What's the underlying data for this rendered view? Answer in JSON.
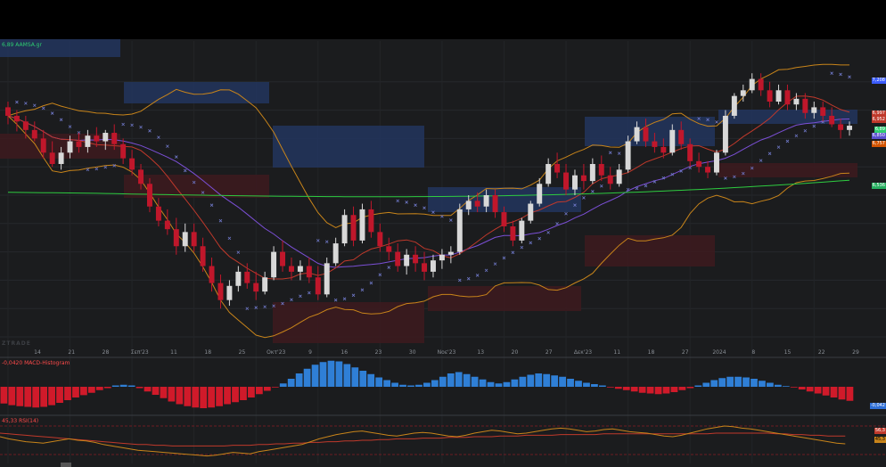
{
  "window": {
    "top_bar_color": "#000000"
  },
  "legends": {
    "price": "6,89 AAMSA.gr",
    "macd": "-0,0420 MACD-Histogram",
    "rsi": "45,33 RSI(14)",
    "watermark": "ZTRADE"
  },
  "price_tags": [
    {
      "text": "7,208",
      "color": "#3b5cff"
    },
    {
      "text": "6,997",
      "color": "#c0392b"
    },
    {
      "text": "6,952",
      "color": "#c0392b"
    },
    {
      "text": "6,89",
      "color": "#2ecc71"
    },
    {
      "text": "6,850",
      "color": "#5a4fcf"
    },
    {
      "text": "6,757",
      "color": "#d35400"
    },
    {
      "text": "6,536",
      "color": "#27ae60"
    }
  ],
  "macd_tag": "-0,042",
  "rsi_tags": [
    "56,3",
    "45,3"
  ],
  "x_axis_labels": [
    "14",
    "21",
    "28",
    "Σεπ'23",
    "11",
    "18",
    "25",
    "Οκτ'23",
    "9",
    "16",
    "23",
    "30",
    "Νοε'23",
    "13",
    "20",
    "27",
    "Δεκ'23",
    "11",
    "18",
    "27",
    "2024",
    "8",
    "15",
    "22",
    "29"
  ],
  "colors": {
    "background": "#1b1c1e",
    "up_candle": "#d8d8d8",
    "down_candle": "#c0172b",
    "sma_green": "#2ecc40",
    "ma_purple": "#7b4fd6",
    "ma_red": "#c0392b",
    "bollinger": "#c8841a",
    "parabolic_sar": "#6f78c8",
    "macd_pos": "#2f7fd6",
    "macd_neg": "#d01a2a",
    "rsi_line": "#c8841a",
    "rsi_signal": "#c0392b"
  },
  "chart_data": [
    {
      "type": "candlestick",
      "title": "",
      "symbol_label": "AAMSA.gr",
      "last": 6.89,
      "ylim": [
        5.35,
        7.45
      ],
      "ohlc": [
        [
          7.02,
          7.06,
          6.9,
          6.96
        ],
        [
          6.96,
          7.0,
          6.85,
          6.92
        ],
        [
          6.92,
          6.96,
          6.8,
          6.86
        ],
        [
          6.86,
          6.92,
          6.78,
          6.8
        ],
        [
          6.8,
          6.86,
          6.66,
          6.7
        ],
        [
          6.7,
          6.78,
          6.6,
          6.62
        ],
        [
          6.62,
          6.74,
          6.58,
          6.7
        ],
        [
          6.7,
          6.82,
          6.66,
          6.78
        ],
        [
          6.78,
          6.84,
          6.7,
          6.74
        ],
        [
          6.74,
          6.86,
          6.7,
          6.82
        ],
        [
          6.82,
          6.88,
          6.74,
          6.78
        ],
        [
          6.78,
          6.86,
          6.72,
          6.84
        ],
        [
          6.84,
          6.9,
          6.72,
          6.76
        ],
        [
          6.76,
          6.8,
          6.62,
          6.66
        ],
        [
          6.66,
          6.72,
          6.54,
          6.58
        ],
        [
          6.58,
          6.62,
          6.44,
          6.48
        ],
        [
          6.48,
          6.52,
          6.28,
          6.32
        ],
        [
          6.32,
          6.38,
          6.18,
          6.22
        ],
        [
          6.22,
          6.3,
          6.12,
          6.16
        ],
        [
          6.16,
          6.24,
          5.98,
          6.04
        ],
        [
          6.04,
          6.2,
          6.0,
          6.14
        ],
        [
          6.14,
          6.2,
          6.0,
          6.04
        ],
        [
          6.04,
          6.1,
          5.86,
          5.9
        ],
        [
          5.9,
          5.96,
          5.72,
          5.78
        ],
        [
          5.78,
          5.84,
          5.6,
          5.66
        ],
        [
          5.66,
          5.8,
          5.62,
          5.76
        ],
        [
          5.76,
          5.9,
          5.72,
          5.86
        ],
        [
          5.86,
          5.92,
          5.74,
          5.78
        ],
        [
          5.78,
          5.86,
          5.66,
          5.72
        ],
        [
          5.72,
          5.86,
          5.7,
          5.82
        ],
        [
          5.82,
          6.04,
          5.8,
          6.0
        ],
        [
          6.0,
          6.08,
          5.86,
          5.9
        ],
        [
          5.9,
          5.96,
          5.8,
          5.86
        ],
        [
          5.86,
          5.94,
          5.8,
          5.9
        ],
        [
          5.9,
          5.96,
          5.78,
          5.82
        ],
        [
          5.82,
          5.9,
          5.66,
          5.7
        ],
        [
          5.7,
          5.96,
          5.68,
          5.92
        ],
        [
          5.92,
          6.1,
          5.9,
          6.06
        ],
        [
          6.06,
          6.3,
          6.04,
          6.26
        ],
        [
          6.26,
          6.32,
          6.04,
          6.08
        ],
        [
          6.08,
          6.34,
          6.06,
          6.3
        ],
        [
          6.3,
          6.36,
          6.1,
          6.14
        ],
        [
          6.14,
          6.2,
          6.0,
          6.04
        ],
        [
          6.04,
          6.1,
          5.94,
          6.0
        ],
        [
          6.0,
          6.06,
          5.86,
          5.9
        ],
        [
          5.9,
          6.02,
          5.84,
          5.98
        ],
        [
          5.98,
          6.04,
          5.86,
          5.92
        ],
        [
          5.92,
          6.0,
          5.8,
          5.86
        ],
        [
          5.86,
          5.98,
          5.82,
          5.94
        ],
        [
          5.94,
          6.02,
          5.88,
          5.98
        ],
        [
          5.98,
          6.04,
          5.92,
          6.0
        ],
        [
          6.0,
          6.34,
          5.98,
          6.3
        ],
        [
          6.3,
          6.4,
          6.26,
          6.36
        ],
        [
          6.36,
          6.42,
          6.28,
          6.32
        ],
        [
          6.32,
          6.44,
          6.28,
          6.4
        ],
        [
          6.4,
          6.44,
          6.24,
          6.28
        ],
        [
          6.28,
          6.32,
          6.14,
          6.18
        ],
        [
          6.18,
          6.22,
          6.04,
          6.08
        ],
        [
          6.08,
          6.24,
          6.06,
          6.22
        ],
        [
          6.22,
          6.36,
          6.2,
          6.34
        ],
        [
          6.34,
          6.52,
          6.32,
          6.48
        ],
        [
          6.48,
          6.66,
          6.46,
          6.62
        ],
        [
          6.62,
          6.7,
          6.52,
          6.56
        ],
        [
          6.56,
          6.62,
          6.4,
          6.44
        ],
        [
          6.44,
          6.58,
          6.4,
          6.54
        ],
        [
          6.54,
          6.62,
          6.44,
          6.5
        ],
        [
          6.5,
          6.66,
          6.48,
          6.62
        ],
        [
          6.62,
          6.68,
          6.5,
          6.54
        ],
        [
          6.54,
          6.6,
          6.44,
          6.48
        ],
        [
          6.48,
          6.62,
          6.46,
          6.58
        ],
        [
          6.58,
          6.82,
          6.56,
          6.78
        ],
        [
          6.78,
          6.92,
          6.76,
          6.88
        ],
        [
          6.88,
          6.94,
          6.74,
          6.78
        ],
        [
          6.78,
          6.84,
          6.7,
          6.74
        ],
        [
          6.74,
          6.8,
          6.66,
          6.7
        ],
        [
          6.7,
          6.9,
          6.68,
          6.86
        ],
        [
          6.86,
          6.92,
          6.72,
          6.76
        ],
        [
          6.76,
          6.8,
          6.6,
          6.64
        ],
        [
          6.64,
          6.7,
          6.56,
          6.6
        ],
        [
          6.6,
          6.64,
          6.52,
          6.56
        ],
        [
          6.56,
          6.72,
          6.54,
          6.7
        ],
        [
          6.7,
          7.0,
          6.68,
          6.96
        ],
        [
          6.96,
          7.12,
          6.94,
          7.1
        ],
        [
          7.1,
          7.18,
          7.06,
          7.14
        ],
        [
          7.14,
          7.26,
          7.12,
          7.22
        ],
        [
          7.22,
          7.26,
          7.1,
          7.14
        ],
        [
          7.14,
          7.2,
          7.02,
          7.06
        ],
        [
          7.06,
          7.18,
          7.04,
          7.14
        ],
        [
          7.14,
          7.18,
          7.0,
          7.04
        ],
        [
          7.04,
          7.12,
          7.0,
          7.08
        ],
        [
          7.08,
          7.12,
          6.94,
          6.98
        ],
        [
          6.98,
          7.06,
          6.94,
          7.02
        ],
        [
          7.02,
          7.06,
          6.92,
          6.96
        ],
        [
          6.96,
          7.02,
          6.88,
          6.9
        ],
        [
          6.9,
          6.94,
          6.8,
          6.86
        ],
        [
          6.86,
          6.92,
          6.82,
          6.89
        ]
      ],
      "indicators": [
        "SMA(200)",
        "MA",
        "Bollinger Bands",
        "Parabolic SAR"
      ]
    },
    {
      "type": "bar",
      "title": "MACD-Histogram",
      "last": -0.042,
      "values": [
        -0.05,
        -0.055,
        -0.058,
        -0.06,
        -0.062,
        -0.06,
        -0.055,
        -0.048,
        -0.04,
        -0.032,
        -0.025,
        -0.018,
        -0.01,
        -0.004,
        0.004,
        0.006,
        0.004,
        -0.004,
        -0.014,
        -0.024,
        -0.034,
        -0.044,
        -0.052,
        -0.058,
        -0.062,
        -0.064,
        -0.062,
        -0.058,
        -0.052,
        -0.046,
        -0.04,
        -0.032,
        -0.022,
        -0.012,
        -0.002,
        0.01,
        0.024,
        0.04,
        0.054,
        0.066,
        0.074,
        0.078,
        0.076,
        0.068,
        0.058,
        0.048,
        0.038,
        0.028,
        0.02,
        0.012,
        0.006,
        0.004,
        0.006,
        0.012,
        0.02,
        0.03,
        0.04,
        0.044,
        0.038,
        0.03,
        0.022,
        0.014,
        0.01,
        0.014,
        0.022,
        0.03,
        0.036,
        0.04,
        0.038,
        0.034,
        0.03,
        0.024,
        0.018,
        0.012,
        0.008,
        0.004,
        -0.002,
        -0.006,
        -0.01,
        -0.014,
        -0.018,
        -0.02,
        -0.022,
        -0.02,
        -0.016,
        -0.01,
        -0.004,
        0.004,
        0.012,
        0.02,
        0.026,
        0.03,
        0.03,
        0.028,
        0.024,
        0.018,
        0.012,
        0.006,
        0.002,
        -0.002,
        -0.008,
        -0.014,
        -0.02,
        -0.026,
        -0.032,
        -0.038,
        -0.042
      ]
    },
    {
      "type": "line",
      "title": "RSI(14)",
      "last": 45.33,
      "levels": [
        70,
        30
      ],
      "ylim": [
        20,
        80
      ],
      "series": [
        {
          "values": [
            55,
            52,
            50,
            48,
            47,
            46,
            48,
            50,
            52,
            50,
            49,
            47,
            44,
            42,
            40,
            38,
            36,
            35,
            34,
            33,
            32,
            31,
            30,
            29,
            28,
            29,
            31,
            33,
            32,
            31,
            34,
            36,
            38,
            40,
            42,
            44,
            48,
            52,
            55,
            58,
            60,
            62,
            63,
            61,
            59,
            57,
            56,
            58,
            60,
            61,
            60,
            58,
            56,
            55,
            57,
            60,
            62,
            64,
            63,
            61,
            59,
            60,
            62,
            64,
            66,
            67,
            66,
            64,
            62,
            63,
            65,
            66,
            64,
            62,
            61,
            60,
            58,
            56,
            55,
            57,
            60,
            63,
            66,
            68,
            70,
            69,
            67,
            66,
            64,
            62,
            60,
            58,
            56,
            54,
            52,
            50,
            48,
            46,
            45
          ]
        },
        {
          "values": [
            60,
            59,
            58,
            57,
            56,
            55,
            54,
            53,
            52,
            51,
            50,
            49,
            48,
            47,
            46,
            45,
            44,
            44,
            43,
            43,
            42,
            42,
            42,
            42,
            42,
            42,
            42,
            43,
            43,
            43,
            44,
            44,
            45,
            45,
            46,
            46,
            47,
            47,
            48,
            48,
            49,
            49,
            50,
            50,
            51,
            51,
            52,
            52,
            52,
            53,
            53,
            53,
            54,
            54,
            54,
            55,
            55,
            55,
            56,
            56,
            56,
            57,
            57,
            57,
            57,
            58,
            58,
            58,
            58,
            58,
            59,
            59,
            59,
            59,
            59,
            59,
            59,
            59,
            59,
            59,
            59,
            59,
            59,
            60,
            60,
            60,
            60,
            60,
            60,
            60,
            59,
            59,
            58,
            58,
            57,
            57,
            56,
            56,
            56
          ]
        }
      ]
    }
  ]
}
